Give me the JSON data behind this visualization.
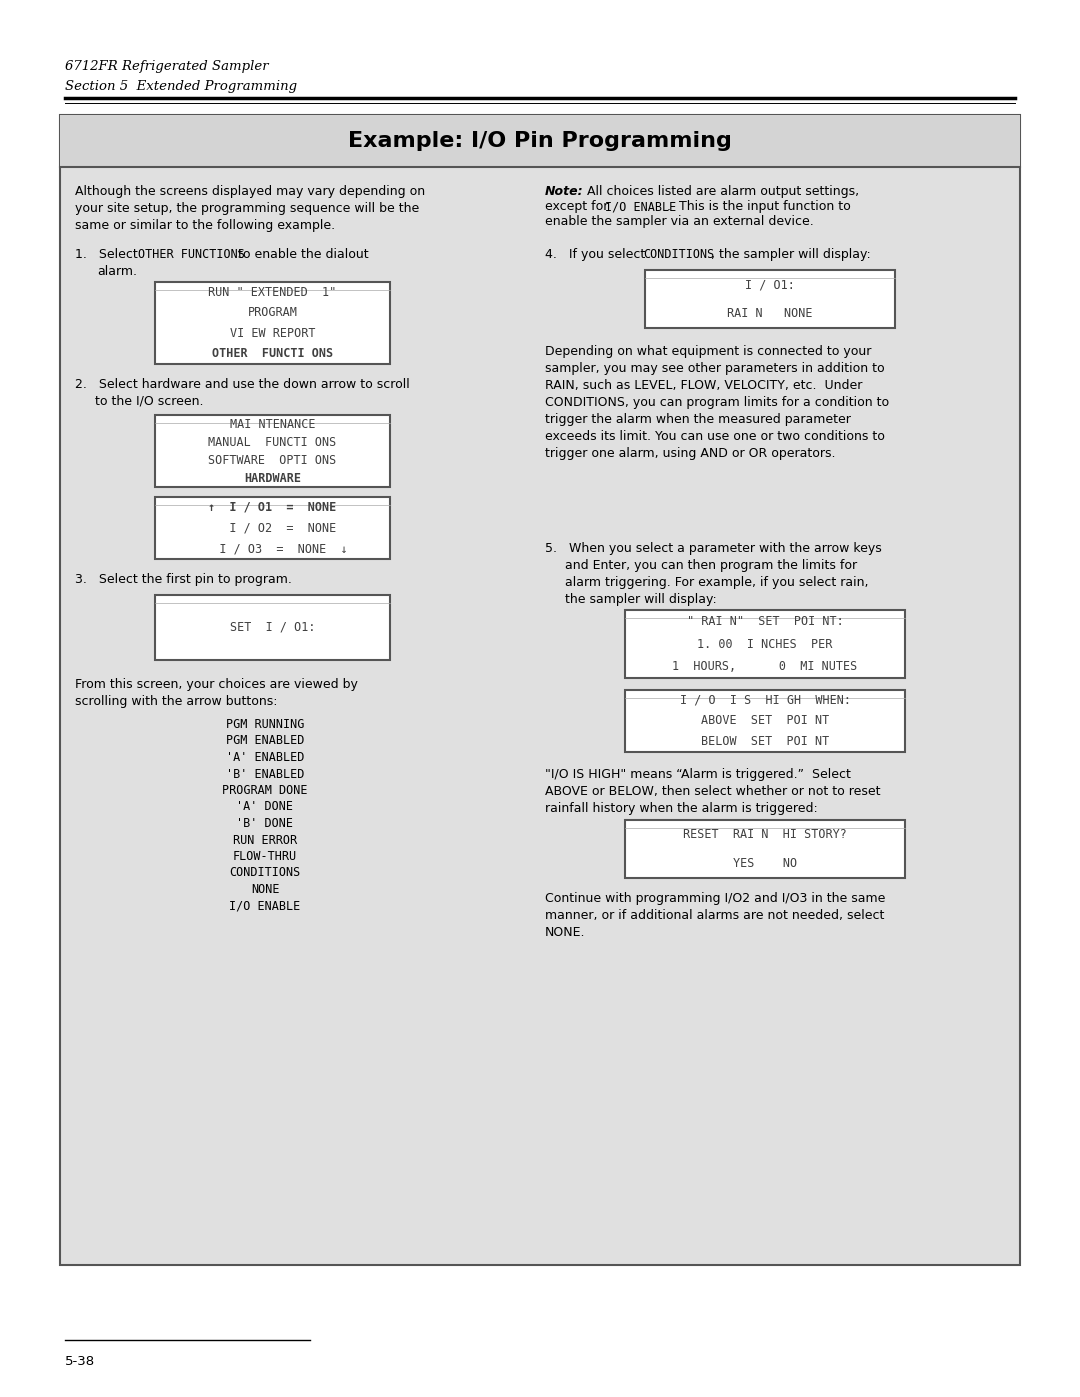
{
  "page_bg": "#ffffff",
  "content_bg": "#e0e0e0",
  "header_line1": "6712FR Refrigerated Sampler",
  "header_line2": "Section 5  Extended Programming",
  "box_title": "Example: I/O Pin Programming",
  "footer_text": "5-38",
  "screen1_lines": [
    "RUN \" EXTENDED  1\"",
    "PROGRAM",
    "VI EW REPORT",
    "OTHER  FUNCTI ONS"
  ],
  "screen1_bold": [
    3
  ],
  "screen2_lines": [
    "MAI NTENANCE",
    "MANUAL  FUNCTI ONS",
    "SOFTWARE  OPTI ONS",
    "HARDWARE"
  ],
  "screen2_bold": [
    3
  ],
  "screen3_lines": [
    "↑  I / O1  =  NONE",
    "   I / O2  =  NONE",
    "   I / O3  =  NONE  ↓"
  ],
  "screen3_bold": [
    0
  ],
  "screen4_lines": [
    "SET  I / O1:"
  ],
  "screen4_bold": [],
  "screen5_lines": [
    "I / O1:",
    "RAI N   NONE"
  ],
  "screen5_bold": [],
  "screen6_lines": [
    "\" RAI N\"  SET  POI NT:",
    "1. 00  I NCHES  PER",
    "1  HOURS,      0  MI NUTES"
  ],
  "screen6_bold": [],
  "screen7_lines": [
    "I / O  I S  HI GH  WHEN:",
    "ABOVE  SET  POI NT",
    "BELOW  SET  POI NT"
  ],
  "screen7_bold": [],
  "screen8_lines": [
    "RESET  RAI N  HI STORY?",
    "YES    NO"
  ],
  "screen8_bold": [],
  "pgm_list": [
    "PGM RUNNING",
    "PGM ENABLED",
    "'A' ENABLED",
    "'B' ENABLED",
    "PROGRAM DONE",
    "'A' DONE",
    "'B' DONE",
    "RUN ERROR",
    "FLOW-THRU",
    "CONDITIONS",
    "NONE",
    "I/O ENABLE"
  ]
}
